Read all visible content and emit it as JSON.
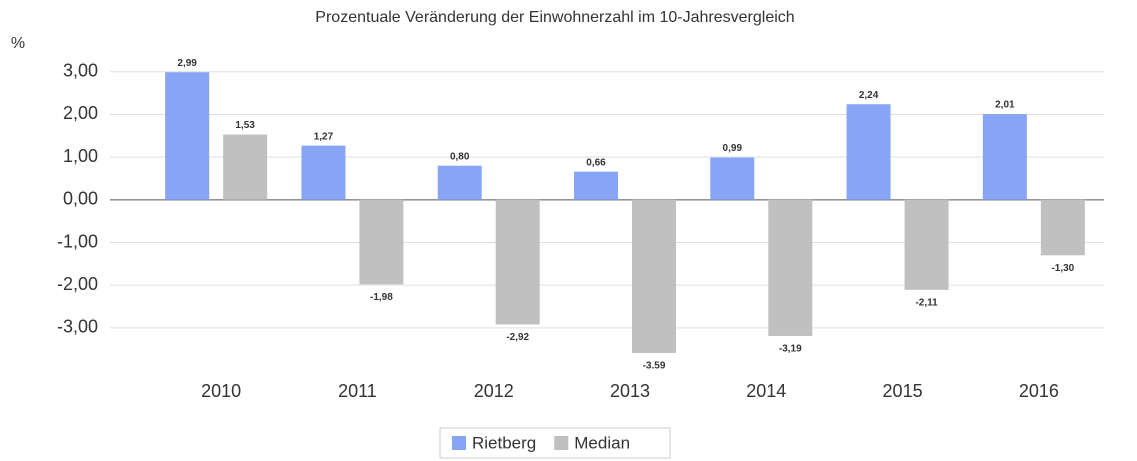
{
  "chart_data": {
    "type": "bar",
    "title": "Prozentuale Veränderung der Einwohnerzahl im 10-Jahresvergleich",
    "y_label": "%",
    "categories": [
      "2010",
      "2011",
      "2012",
      "2013",
      "2014",
      "2015",
      "2016"
    ],
    "series": [
      {
        "name": "Rietberg",
        "color": "#88a4f4",
        "values": [
          2.99,
          1.27,
          0.8,
          0.66,
          0.99,
          2.24,
          2.01
        ],
        "value_labels": [
          "2,99",
          "1,27",
          "0,80",
          "0,66",
          "0,99",
          "2,24",
          "2,01"
        ]
      },
      {
        "name": "Median",
        "color": "#c0c0c0",
        "values": [
          1.53,
          -1.98,
          -2.92,
          -3.59,
          -3.19,
          -2.11,
          -1.3
        ],
        "value_labels": [
          "1,53",
          "-1,98",
          "-2,92",
          "-3.59",
          "-3,19",
          "-2,11",
          "-1,30"
        ]
      }
    ],
    "ylim": [
      -3.8,
      3.3
    ],
    "yticks": [
      {
        "value": -3,
        "label": "-3,00"
      },
      {
        "value": -2,
        "label": "-2,00"
      },
      {
        "value": -1,
        "label": "-1,00"
      },
      {
        "value": 0,
        "label": "0,00"
      },
      {
        "value": 1,
        "label": "1,00"
      },
      {
        "value": 2,
        "label": "2,00"
      },
      {
        "value": 3,
        "label": "3,00"
      }
    ],
    "grid": true,
    "legend": "bottom"
  }
}
